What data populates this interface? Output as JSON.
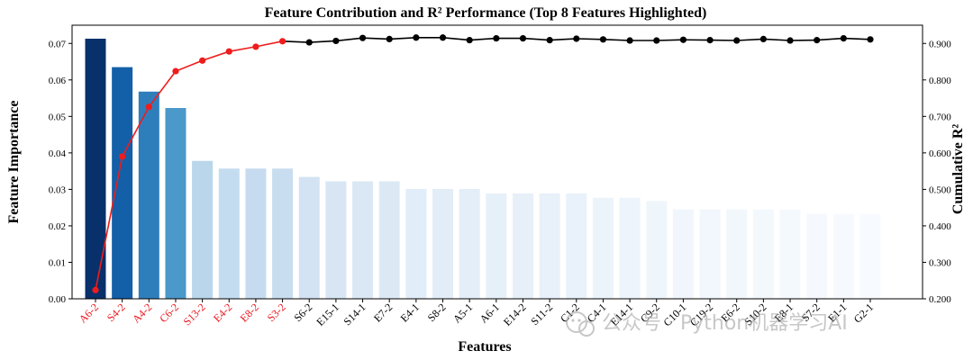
{
  "chart_data": {
    "type": "bar",
    "title": "Feature Contribution and R² Performance (Top 8 Features Highlighted)",
    "xlabel": "Features",
    "ylabel": "Feature Importance",
    "y2label": "Cumulative R²",
    "ylim": [
      0,
      0.075
    ],
    "y2lim": [
      0.2,
      0.95
    ],
    "yticks": [
      "0.00",
      "0.01",
      "0.02",
      "0.03",
      "0.04",
      "0.05",
      "0.06",
      "0.07"
    ],
    "y2ticks": [
      "0.200",
      "0.300",
      "0.400",
      "0.500",
      "0.600",
      "0.700",
      "0.800",
      "0.900"
    ],
    "highlight_top_n": 8,
    "colors": {
      "highlight_label": "#e8141b",
      "normal_label": "#000000",
      "line_highlight": "#ef1c1c",
      "line_normal": "#000000",
      "bar_palette": [
        "#08306b",
        "#135fa8",
        "#2f7ebc",
        "#4b98ca",
        "#b9d6eb",
        "#c4dcef",
        "#c6dbef",
        "#c8ddf0",
        "#d3e3f3",
        "#d8e6f4",
        "#dae8f5",
        "#dce9f5",
        "#e1edf8",
        "#e2edf8",
        "#e3eef8",
        "#e6f0f9",
        "#e7f0f9",
        "#e8f1fa",
        "#e9f2fa",
        "#ecf4fb",
        "#edf4fb",
        "#eef5fb",
        "#f0f6fc",
        "#f1f7fc",
        "#f2f7fc",
        "#f3f8fd",
        "#f4f9fd",
        "#f5f9fe",
        "#f6fafe",
        "#f7fbff"
      ]
    },
    "categories": [
      "A6-2",
      "S4-2",
      "A4-2",
      "C6-2",
      "S13-2",
      "E4-2",
      "E8-2",
      "S3-2",
      "S6-2",
      "E15-1",
      "S14-1",
      "E7-2",
      "E4-1",
      "S8-2",
      "A5-1",
      "A6-1",
      "E14-2",
      "S11-2",
      "C1-2",
      "C4-1",
      "E14-1",
      "C9-2",
      "C10-1",
      "C19-2",
      "E6-2",
      "S10-2",
      "E8-1",
      "S7-2",
      "E1-1",
      "G2-1"
    ],
    "series": [
      {
        "name": "",
        "type": "bar",
        "values": [
          0.0713,
          0.0635,
          0.0568,
          0.0523,
          0.0378,
          0.0357,
          0.0357,
          0.0357,
          0.0334,
          0.0322,
          0.0322,
          0.0322,
          0.0301,
          0.0301,
          0.0301,
          0.0289,
          0.0289,
          0.0289,
          0.0289,
          0.0277,
          0.0277,
          0.0268,
          0.0245,
          0.0245,
          0.0245,
          0.0245,
          0.0245,
          0.0233,
          0.0233,
          0.0233
        ]
      },
      {
        "name": "",
        "type": "line",
        "values": [
          0.224,
          0.59,
          0.726,
          0.824,
          0.853,
          0.878,
          0.891,
          0.906,
          0.903,
          0.907,
          0.915,
          0.912,
          0.916,
          0.916,
          0.909,
          0.914,
          0.914,
          0.909,
          0.913,
          0.911,
          0.908,
          0.908,
          0.91,
          0.909,
          0.908,
          0.912,
          0.908,
          0.909,
          0.914,
          0.911
        ]
      }
    ]
  },
  "watermark": {
    "text": "公众号 · Python机器学习AI",
    "icon": "wechat-icon"
  }
}
